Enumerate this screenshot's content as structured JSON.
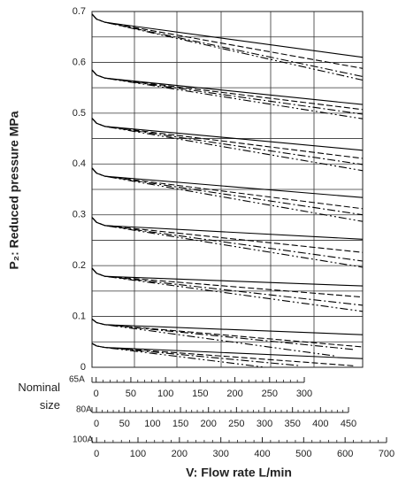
{
  "chart_data": {
    "type": "line",
    "ylabel": "P₂: Reduced pressure MPa",
    "xlabel": "V: Flow rate L/min",
    "nominal_label": "Nominal size",
    "ylim": [
      0,
      0.7
    ],
    "yticks": [
      0,
      0.1,
      0.2,
      0.3,
      0.4,
      0.5,
      0.6,
      0.7
    ],
    "grid": true,
    "xlim": [
      -11,
      642
    ],
    "x_axes": [
      {
        "name": "65A",
        "xlim": [
          -6,
          300
        ],
        "xticks": [
          0,
          50,
          100,
          150,
          200,
          250,
          300
        ]
      },
      {
        "name": "80A",
        "xlim": [
          -8,
          450
        ],
        "xticks": [
          0,
          50,
          100,
          150,
          200,
          250,
          300,
          350,
          400,
          450
        ]
      },
      {
        "name": "100A",
        "xlim": [
          -11,
          700
        ],
        "xticks": [
          0,
          100,
          200,
          300,
          400,
          500,
          600,
          700
        ]
      }
    ],
    "series": [
      {
        "style": "solid",
        "color": "#000",
        "x": [
          -11,
          0,
          20,
          642
        ],
        "values": [
          0.695,
          0.685,
          0.679,
          0.61
        ]
      },
      {
        "style": "dashed",
        "color": "#000",
        "x": [
          -11,
          0,
          20,
          642
        ],
        "values": [
          0.695,
          0.685,
          0.679,
          0.588
        ]
      },
      {
        "style": "dashdot",
        "color": "#000",
        "x": [
          -11,
          0,
          20,
          642
        ],
        "values": [
          0.695,
          0.685,
          0.679,
          0.572
        ]
      },
      {
        "style": "dashdotdot",
        "color": "#000",
        "x": [
          -11,
          0,
          20,
          642
        ],
        "values": [
          0.695,
          0.685,
          0.679,
          0.565
        ]
      },
      {
        "style": "solid",
        "color": "#000",
        "x": [
          -11,
          0,
          20,
          642
        ],
        "values": [
          0.585,
          0.575,
          0.569,
          0.517
        ]
      },
      {
        "style": "dashed",
        "color": "#000",
        "x": [
          -11,
          0,
          20,
          642
        ],
        "values": [
          0.585,
          0.575,
          0.569,
          0.507
        ]
      },
      {
        "style": "dashdot",
        "color": "#000",
        "x": [
          -11,
          0,
          20,
          642
        ],
        "values": [
          0.585,
          0.575,
          0.569,
          0.498
        ]
      },
      {
        "style": "dashdotdot",
        "color": "#000",
        "x": [
          -11,
          0,
          20,
          642
        ],
        "values": [
          0.585,
          0.575,
          0.569,
          0.489
        ]
      },
      {
        "style": "solid",
        "color": "#000",
        "x": [
          -11,
          0,
          20,
          642
        ],
        "values": [
          0.49,
          0.48,
          0.474,
          0.427
        ]
      },
      {
        "style": "dashed",
        "color": "#000",
        "x": [
          -11,
          0,
          20,
          642
        ],
        "values": [
          0.49,
          0.48,
          0.474,
          0.411
        ]
      },
      {
        "style": "dashdot",
        "color": "#000",
        "x": [
          -11,
          0,
          20,
          642
        ],
        "values": [
          0.49,
          0.48,
          0.474,
          0.399
        ]
      },
      {
        "style": "dashdotdot",
        "color": "#000",
        "x": [
          -11,
          0,
          20,
          642
        ],
        "values": [
          0.49,
          0.48,
          0.474,
          0.387
        ]
      },
      {
        "style": "solid",
        "color": "#000",
        "x": [
          -11,
          0,
          20,
          642
        ],
        "values": [
          0.392,
          0.382,
          0.376,
          0.334
        ]
      },
      {
        "style": "dashed",
        "color": "#000",
        "x": [
          -11,
          0,
          20,
          642
        ],
        "values": [
          0.392,
          0.382,
          0.376,
          0.312
        ]
      },
      {
        "style": "dashdot",
        "color": "#000",
        "x": [
          -11,
          0,
          20,
          642
        ],
        "values": [
          0.392,
          0.382,
          0.376,
          0.3
        ]
      },
      {
        "style": "dashdotdot",
        "color": "#000",
        "x": [
          -11,
          0,
          20,
          642
        ],
        "values": [
          0.392,
          0.382,
          0.376,
          0.287
        ]
      },
      {
        "style": "solid",
        "color": "#000",
        "x": [
          -11,
          0,
          20,
          642
        ],
        "values": [
          0.295,
          0.285,
          0.279,
          0.252
        ]
      },
      {
        "style": "dashed",
        "color": "#000",
        "x": [
          -11,
          0,
          20,
          642
        ],
        "values": [
          0.295,
          0.285,
          0.279,
          0.226
        ]
      },
      {
        "style": "dashdot",
        "color": "#000",
        "x": [
          -11,
          0,
          20,
          642
        ],
        "values": [
          0.295,
          0.285,
          0.279,
          0.209
        ]
      },
      {
        "style": "dashdotdot",
        "color": "#000",
        "x": [
          -11,
          0,
          20,
          642
        ],
        "values": [
          0.295,
          0.285,
          0.279,
          0.197
        ]
      },
      {
        "style": "solid",
        "color": "#000",
        "x": [
          -11,
          0,
          20,
          642
        ],
        "values": [
          0.195,
          0.185,
          0.179,
          0.16
        ]
      },
      {
        "style": "dashed",
        "color": "#000",
        "x": [
          -11,
          0,
          20,
          642
        ],
        "values": [
          0.195,
          0.185,
          0.179,
          0.138
        ]
      },
      {
        "style": "dashdot",
        "color": "#000",
        "x": [
          -11,
          0,
          20,
          642
        ],
        "values": [
          0.195,
          0.185,
          0.179,
          0.122
        ]
      },
      {
        "style": "dashdotdot",
        "color": "#000",
        "x": [
          -11,
          0,
          20,
          642
        ],
        "values": [
          0.195,
          0.185,
          0.179,
          0.11
        ]
      },
      {
        "style": "solid",
        "color": "#000",
        "x": [
          -11,
          0,
          20,
          642
        ],
        "values": [
          0.095,
          0.088,
          0.084,
          0.064
        ]
      },
      {
        "style": "dashed",
        "color": "#000",
        "x": [
          -11,
          0,
          20,
          642
        ],
        "values": [
          0.095,
          0.088,
          0.084,
          0.04
        ]
      },
      {
        "style": "dashdot",
        "color": "#000",
        "x": [
          -11,
          0,
          20,
          620
        ],
        "values": [
          0.095,
          0.088,
          0.084,
          0.035
        ]
      },
      {
        "style": "dashdotdot",
        "color": "#000",
        "x": [
          -11,
          0,
          20,
          578
        ],
        "values": [
          0.095,
          0.088,
          0.084,
          0.022
        ]
      },
      {
        "style": "solid",
        "color": "#000",
        "x": [
          -11,
          0,
          20,
          642
        ],
        "values": [
          0.047,
          0.042,
          0.039,
          0.017
        ]
      },
      {
        "style": "dashed",
        "color": "#000",
        "x": [
          -11,
          0,
          20,
          620
        ],
        "values": [
          0.047,
          0.042,
          0.039,
          0.003
        ]
      },
      {
        "style": "dashdot",
        "color": "#000",
        "x": [
          -11,
          0,
          20,
          493
        ],
        "values": [
          0.047,
          0.042,
          0.039,
          0.003
        ]
      },
      {
        "style": "dashdotdot",
        "color": "#000",
        "x": [
          -11,
          0,
          20,
          407
        ],
        "values": [
          0.047,
          0.042,
          0.039,
          0
        ]
      }
    ]
  }
}
